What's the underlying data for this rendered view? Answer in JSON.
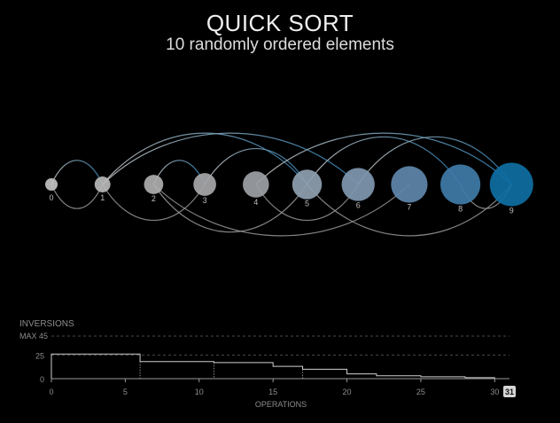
{
  "header": {
    "title": "QUICK SORT",
    "subtitle": "10 randomly ordered elements"
  },
  "elements": {
    "labels": [
      "0",
      "1",
      "2",
      "3",
      "4",
      "5",
      "6",
      "7",
      "8",
      "9"
    ],
    "sizes": [
      1,
      2,
      3,
      4,
      5,
      6,
      7,
      8,
      9,
      10
    ],
    "colors": [
      "#c2c2c2",
      "#b8b8b8",
      "#aeaeae",
      "#a7a7aa",
      "#9da1a6",
      "#8fa0b0",
      "#7f98b0",
      "#5f87ab",
      "#3f7ca8",
      "#0e6fa3"
    ]
  },
  "swap_arcs": [
    {
      "from": 0,
      "to": 1,
      "side": "top"
    },
    {
      "from": 0,
      "to": 1,
      "side": "bottom"
    },
    {
      "from": 1,
      "to": 5,
      "side": "top"
    },
    {
      "from": 1,
      "to": 6,
      "side": "top"
    },
    {
      "from": 1,
      "to": 3,
      "side": "bottom"
    },
    {
      "from": 2,
      "to": 3,
      "side": "top"
    },
    {
      "from": 2,
      "to": 5,
      "side": "bottom"
    },
    {
      "from": 3,
      "to": 5,
      "side": "top"
    },
    {
      "from": 2,
      "to": 7,
      "side": "bottom"
    },
    {
      "from": 4,
      "to": 9,
      "side": "top"
    },
    {
      "from": 4,
      "to": 6,
      "side": "bottom"
    },
    {
      "from": 5,
      "to": 8,
      "side": "top"
    },
    {
      "from": 6,
      "to": 9,
      "side": "top"
    },
    {
      "from": 5,
      "to": 9,
      "side": "bottom"
    },
    {
      "from": 8,
      "to": 9,
      "side": "bottom"
    }
  ],
  "inversions_chart": {
    "title": "INVERSIONS",
    "max_label": "MAX 45",
    "max": 45,
    "y_ticks": [
      "25",
      "0"
    ],
    "y_tick_values": [
      25,
      0
    ],
    "x_label": "OPERATIONS",
    "x_ticks": [
      "0",
      "5",
      "10",
      "15",
      "20",
      "25",
      "30"
    ],
    "x_tick_values": [
      0,
      5,
      10,
      15,
      20,
      25,
      30
    ],
    "current_label": "31",
    "x_max": 31,
    "steps": [
      {
        "x": 0,
        "y": 26
      },
      {
        "x": 6,
        "y": 18
      },
      {
        "x": 11,
        "y": 17
      },
      {
        "x": 15,
        "y": 13
      },
      {
        "x": 17,
        "y": 10
      },
      {
        "x": 20,
        "y": 5
      },
      {
        "x": 22,
        "y": 3
      },
      {
        "x": 25,
        "y": 2
      },
      {
        "x": 28,
        "y": 1
      },
      {
        "x": 30,
        "y": 0
      },
      {
        "x": 31,
        "y": 0
      }
    ],
    "markers": [
      6,
      11,
      17
    ]
  }
}
